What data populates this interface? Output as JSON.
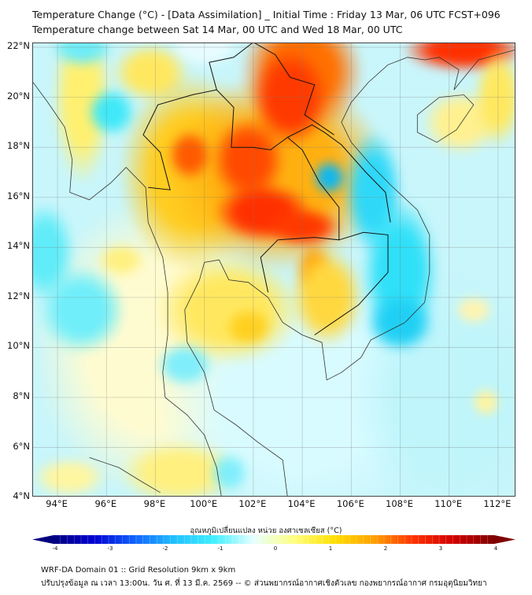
{
  "header": {
    "title": "Temperature Change (°C) - [Data Assimilation] _ Initial Time : Friday 13 Mar, 06 UTC FCST+096",
    "subtitle": "Temperature change between Sat 14 Mar, 00 UTC and Wed 18 Mar, 00 UTC"
  },
  "map": {
    "lat_ticks": [
      "22°N",
      "20°N",
      "18°N",
      "16°N",
      "14°N",
      "12°N",
      "10°N",
      "8°N",
      "6°N",
      "4°N"
    ],
    "lon_ticks": [
      "94°E",
      "96°E",
      "98°E",
      "100°E",
      "102°E",
      "104°E",
      "106°E",
      "108°E",
      "110°E",
      "112°E"
    ],
    "lon_range": [
      93,
      112.7
    ],
    "lat_range": [
      4,
      22.2
    ]
  },
  "colorbar": {
    "label": "อุณหภูมิเปลี่ยนแปลง หน่วย องศาเซลเซียส (°C)",
    "ticks": [
      "-4",
      "-3",
      "-2",
      "-1",
      "0",
      "1",
      "2",
      "3",
      "4"
    ],
    "range": [
      -4,
      4
    ],
    "colors": [
      "#00007f",
      "#0000d0",
      "#1060ff",
      "#20c0ff",
      "#40f0ff",
      "#e8ffff",
      "#ffff80",
      "#ffe000",
      "#ffa000",
      "#ff3000",
      "#d00000",
      "#7f0000"
    ]
  },
  "footer": {
    "line1": "WRF-DA Domain 01 :: Grid Resolution 9km x 9km",
    "line2": "ปรับปรุงข้อมูล ณ เวลา 13:00น. วัน ศ. ที่ 13 มี.ค. 2569 -- © ส่วนพยากรณ์อากาศเชิงตัวเลข กองพยากรณ์อากาศ กรมอุตุนิยมวิทยา"
  }
}
